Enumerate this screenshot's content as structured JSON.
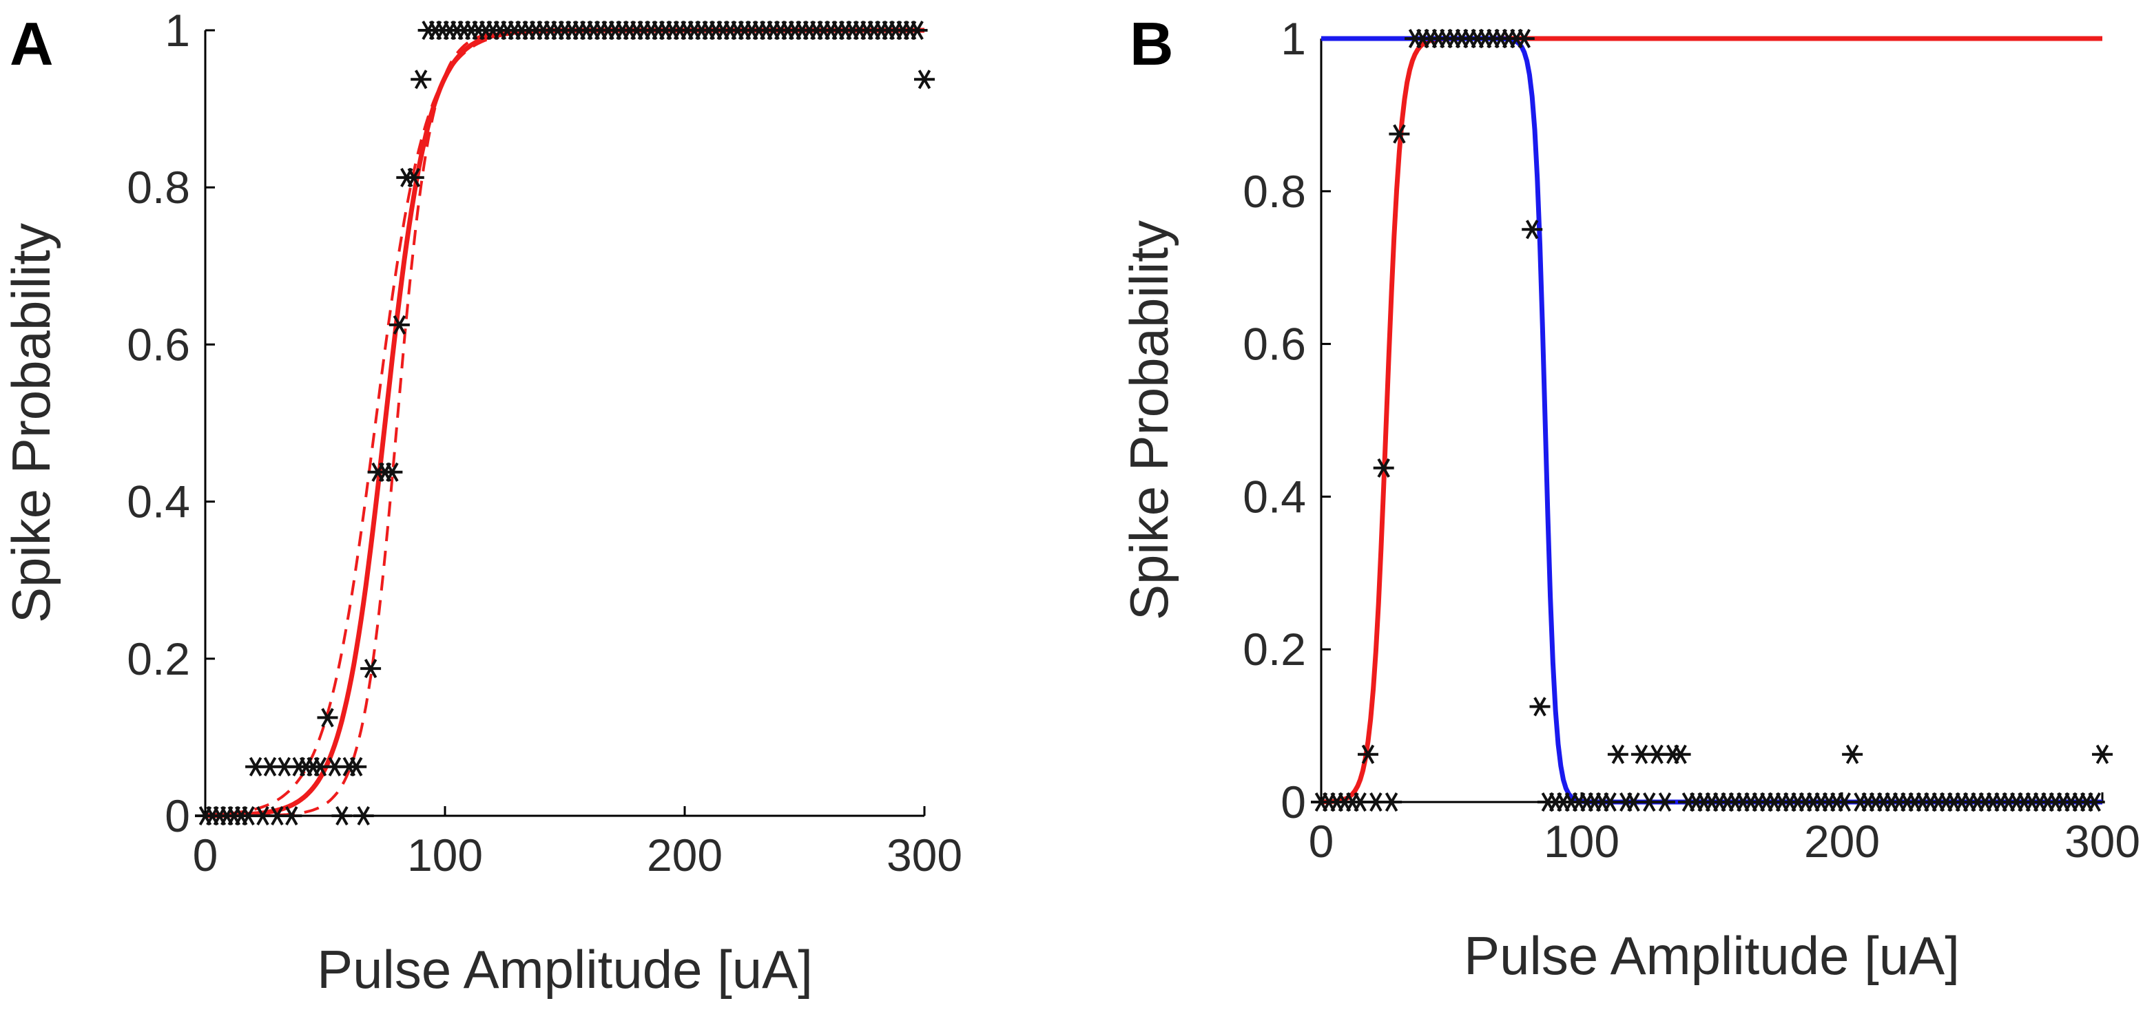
{
  "panels": [
    {
      "letter": "A"
    },
    {
      "letter": "B"
    }
  ],
  "colors": {
    "fit_red": "#ee1c1c",
    "fit_blue": "#1a1aee",
    "marker": "#111111",
    "axis": "#000000"
  },
  "chart_data": [
    {
      "type": "scatter",
      "panel": "A",
      "title": "",
      "xlabel": "Pulse Amplitude [uA]",
      "ylabel": "Spike Probability",
      "xlim": [
        0,
        300
      ],
      "ylim": [
        0,
        1
      ],
      "xticks": [
        0,
        100,
        200,
        300
      ],
      "xtick_labels": [
        "0",
        "100",
        "200",
        "300"
      ],
      "yticks": [
        0,
        0.2,
        0.4,
        0.6,
        0.8,
        1
      ],
      "ytick_labels": [
        "0",
        "0.2",
        "0.4",
        "0.6",
        "0.8",
        "1"
      ],
      "grid": false,
      "box": "left-bottom",
      "fits": [
        {
          "name": "fit",
          "kind": "logistic",
          "x0": 75,
          "k": 0.11,
          "style": "solid",
          "color": "#ee1c1c"
        },
        {
          "name": "lower bound",
          "kind": "logistic",
          "x0": 80,
          "k": 0.14,
          "style": "dashed",
          "color": "#ee1c1c"
        },
        {
          "name": "upper bound",
          "kind": "logistic",
          "x0": 71,
          "k": 0.095,
          "style": "dashed",
          "color": "#ee1c1c"
        }
      ],
      "points": {
        "x": [
          0,
          3,
          6,
          9,
          12,
          15,
          18,
          21,
          24,
          27,
          30,
          33,
          36,
          39,
          42,
          45,
          48,
          51,
          54,
          57,
          60,
          63,
          66,
          69,
          72,
          75,
          78,
          81,
          84,
          87,
          90,
          93,
          96,
          99,
          102,
          105,
          108,
          111,
          114,
          117,
          120,
          123,
          126,
          129,
          132,
          135,
          138,
          141,
          144,
          147,
          150,
          153,
          156,
          159,
          162,
          165,
          168,
          171,
          174,
          177,
          180,
          183,
          186,
          189,
          192,
          195,
          198,
          201,
          204,
          207,
          210,
          213,
          216,
          219,
          222,
          225,
          228,
          231,
          234,
          237,
          240,
          243,
          246,
          249,
          252,
          255,
          258,
          261,
          264,
          267,
          270,
          273,
          276,
          279,
          282,
          285,
          288,
          291,
          294,
          297,
          300
        ],
        "y": [
          0,
          0,
          0,
          0,
          0,
          0,
          0,
          0.0625,
          0,
          0.0625,
          0,
          0.0625,
          0,
          0.0625,
          0.0625,
          0.0625,
          0.0625,
          0.125,
          0.0625,
          0,
          0.0625,
          0.0625,
          0,
          0.1875,
          0.4375,
          0.4375,
          0.4375,
          0.625,
          0.8125,
          0.8125,
          0.9375,
          1,
          1,
          1,
          1,
          1,
          1,
          1,
          1,
          1,
          1,
          1,
          1,
          1,
          1,
          1,
          1,
          1,
          1,
          1,
          1,
          1,
          1,
          1,
          1,
          1,
          1,
          1,
          1,
          1,
          1,
          1,
          1,
          1,
          1,
          1,
          1,
          1,
          1,
          1,
          1,
          1,
          1,
          1,
          1,
          1,
          1,
          1,
          1,
          1,
          1,
          1,
          1,
          1,
          1,
          1,
          1,
          1,
          1,
          1,
          1,
          1,
          1,
          1,
          1,
          1,
          1,
          1,
          1,
          1,
          0.9375
        ],
        "marker": "*"
      }
    },
    {
      "type": "scatter",
      "panel": "B",
      "title": "",
      "xlabel": "Pulse Amplitude [uA]",
      "ylabel": "Spike Probability",
      "xlim": [
        0,
        300
      ],
      "ylim": [
        0,
        1
      ],
      "xticks": [
        0,
        100,
        200,
        300
      ],
      "xtick_labels": [
        "0",
        "100",
        "200",
        "300"
      ],
      "yticks": [
        0,
        0.2,
        0.4,
        0.6,
        0.8,
        1
      ],
      "ytick_labels": [
        "0",
        "0.2",
        "0.4",
        "0.6",
        "0.8",
        "1"
      ],
      "grid": false,
      "box": "left-bottom",
      "fits": [
        {
          "name": "rising fit",
          "kind": "logistic",
          "x0": 25,
          "k": 0.35,
          "style": "solid",
          "color": "#ee1c1c"
        },
        {
          "name": "falling fit",
          "kind": "logistic_down",
          "x0": 86,
          "k": 0.5,
          "style": "solid",
          "color": "#1a1aee"
        }
      ],
      "points": {
        "x": [
          0,
          3,
          6,
          9,
          12,
          15,
          18,
          21,
          24,
          27,
          30,
          36,
          39,
          42,
          45,
          48,
          51,
          54,
          57,
          60,
          63,
          66,
          69,
          72,
          75,
          78,
          81,
          84,
          87,
          90,
          93,
          96,
          99,
          102,
          105,
          108,
          111,
          114,
          117,
          120,
          123,
          126,
          129,
          132,
          135,
          138,
          141,
          144,
          147,
          150,
          153,
          156,
          159,
          162,
          165,
          168,
          171,
          174,
          177,
          180,
          183,
          186,
          189,
          192,
          195,
          198,
          201,
          204,
          207,
          210,
          213,
          216,
          219,
          222,
          225,
          228,
          231,
          234,
          237,
          240,
          243,
          246,
          249,
          252,
          255,
          258,
          261,
          264,
          267,
          270,
          273,
          276,
          279,
          282,
          285,
          288,
          291,
          294,
          297,
          300
        ],
        "y": [
          0,
          0,
          0,
          0,
          0,
          0,
          0.0625,
          0,
          0.4375,
          0,
          0.875,
          1,
          1,
          1,
          1,
          1,
          1,
          1,
          1,
          1,
          1,
          1,
          1,
          1,
          1,
          1,
          0.75,
          0.125,
          0,
          0,
          0,
          0,
          0,
          0,
          0,
          0,
          0,
          0.0625,
          0,
          0,
          0.0625,
          0,
          0.0625,
          0,
          0.0625,
          0.0625,
          0,
          0,
          0,
          0,
          0,
          0,
          0,
          0,
          0,
          0,
          0,
          0,
          0,
          0,
          0,
          0,
          0,
          0,
          0,
          0,
          0,
          0.0625,
          0,
          0,
          0,
          0,
          0,
          0,
          0,
          0,
          0,
          0,
          0,
          0,
          0,
          0,
          0,
          0,
          0,
          0,
          0,
          0,
          0,
          0,
          0,
          0,
          0,
          0,
          0,
          0,
          0,
          0,
          0,
          0.0625
        ],
        "marker": "*"
      }
    }
  ]
}
